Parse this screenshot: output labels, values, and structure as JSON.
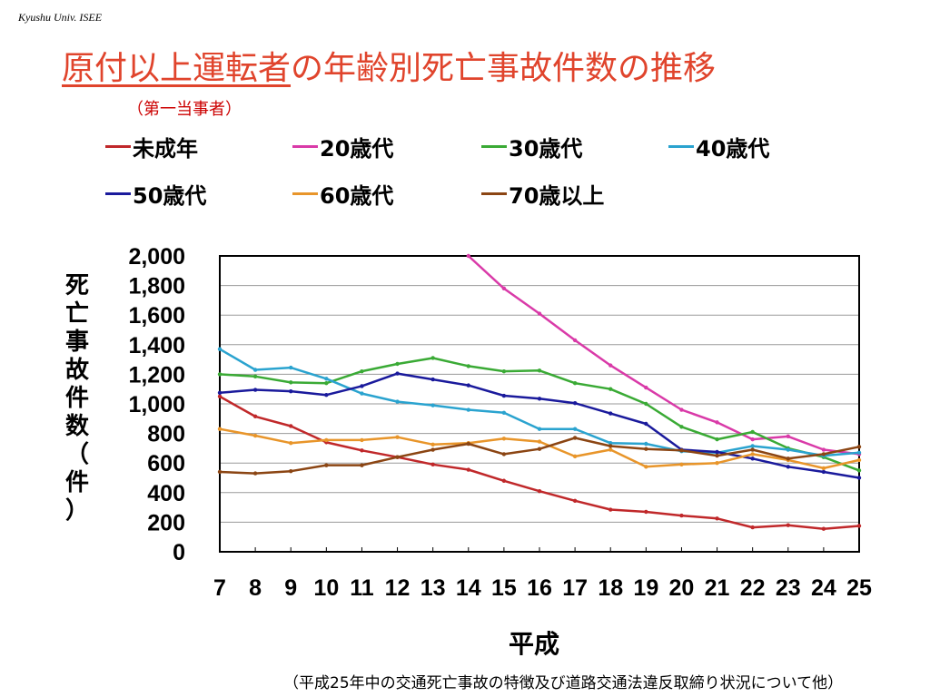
{
  "header": {
    "credit": "Kyushu Univ. ISEE",
    "title_underlined": "原付以上運転者",
    "title_rest": "の年齢別死亡事故件数の推移",
    "subtitle": "（第一当事者）"
  },
  "footer": {
    "source": "（平成25年中の交通死亡事故の特徴及び道路交通法違反取締り状況について他）"
  },
  "colors": {
    "title": "#e0442c",
    "subtitle": "#cc0000"
  },
  "chart_data": {
    "type": "line",
    "title": "",
    "xlabel": "平成",
    "ylabel": "死亡事故件数（件）",
    "ylabel_chars": [
      "死",
      "亡",
      "事",
      "故",
      "件",
      "数",
      "（",
      "件",
      "）"
    ],
    "x": [
      "7",
      "8",
      "9",
      "10",
      "11",
      "12",
      "13",
      "14",
      "15",
      "16",
      "17",
      "18",
      "19",
      "20",
      "21",
      "22",
      "23",
      "24",
      "25"
    ],
    "ylim": [
      0,
      2000
    ],
    "yticks": [
      "2,000",
      "1,800",
      "1,600",
      "1,400",
      "1,200",
      "1,000",
      "800",
      "600",
      "400",
      "200",
      "0"
    ],
    "grid": true,
    "legend_position": "top",
    "series": [
      {
        "name": "未成年",
        "color": "#c0282a",
        "values": [
          1050,
          915,
          850,
          740,
          685,
          640,
          590,
          555,
          480,
          410,
          345,
          285,
          270,
          245,
          225,
          165,
          180,
          155,
          175
        ]
      },
      {
        "name": "20歳代",
        "color": "#d93aa8",
        "values": [
          null,
          null,
          null,
          null,
          null,
          null,
          null,
          2000,
          1780,
          1610,
          1430,
          1260,
          1110,
          960,
          875,
          760,
          780,
          690,
          660
        ]
      },
      {
        "name": "30歳代",
        "color": "#3aaa35",
        "values": [
          1200,
          1185,
          1145,
          1140,
          1220,
          1270,
          1310,
          1255,
          1220,
          1225,
          1140,
          1100,
          1000,
          845,
          760,
          810,
          700,
          640,
          550
        ]
      },
      {
        "name": "40歳代",
        "color": "#2aa3cf",
        "values": [
          1370,
          1230,
          1245,
          1170,
          1070,
          1015,
          990,
          960,
          940,
          830,
          830,
          735,
          730,
          680,
          670,
          715,
          690,
          650,
          670
        ]
      },
      {
        "name": "50歳代",
        "color": "#1a1a9c",
        "values": [
          1075,
          1095,
          1085,
          1060,
          1120,
          1205,
          1165,
          1125,
          1055,
          1035,
          1005,
          935,
          865,
          690,
          675,
          630,
          575,
          540,
          500
        ]
      },
      {
        "name": "60歳代",
        "color": "#e8952a",
        "values": [
          830,
          785,
          735,
          755,
          755,
          775,
          725,
          735,
          765,
          745,
          645,
          690,
          575,
          590,
          600,
          660,
          620,
          565,
          620
        ]
      },
      {
        "name": "70歳以上",
        "color": "#8b4513",
        "values": [
          540,
          530,
          545,
          585,
          585,
          640,
          690,
          730,
          660,
          695,
          770,
          715,
          695,
          685,
          650,
          690,
          630,
          660,
          710
        ]
      }
    ]
  }
}
